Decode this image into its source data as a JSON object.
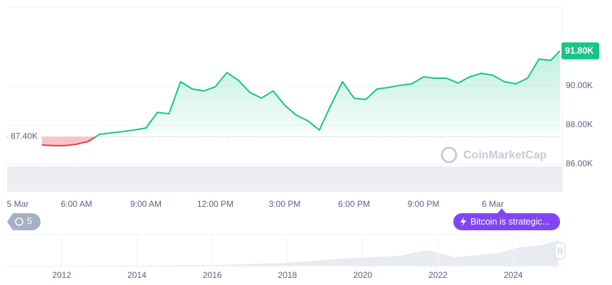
{
  "chart_data": {
    "type": "line",
    "x": [
      4.5,
      5,
      5.5,
      6,
      6.5,
      7,
      7.5,
      8,
      8.5,
      9,
      9.5,
      10,
      10.5,
      11,
      11.5,
      12,
      12.5,
      13,
      13.5,
      14,
      14.5,
      15,
      15.5,
      16,
      16.5,
      17,
      17.5,
      18,
      18.5,
      19,
      19.5,
      20,
      20.5,
      21,
      21.5,
      22,
      22.5,
      23,
      23.5,
      24,
      24.5,
      25,
      25.5,
      26,
      26.5,
      26.9
    ],
    "values": [
      86980,
      86950,
      86950,
      87020,
      87160,
      87530,
      87600,
      87670,
      87750,
      87850,
      88650,
      88580,
      90220,
      89850,
      89750,
      89960,
      90690,
      90290,
      89670,
      89380,
      89750,
      89020,
      88510,
      88220,
      87750,
      89020,
      90220,
      89380,
      89310,
      89850,
      89930,
      90040,
      90110,
      90470,
      90400,
      90400,
      90150,
      90470,
      90650,
      90550,
      90220,
      90110,
      90400,
      91380,
      91310,
      91800
    ],
    "up_color": "#16c784",
    "down_color": "#ea3943",
    "reference": {
      "value": 87400,
      "label": "87.40K"
    },
    "last_price": {
      "value": 91800,
      "label": "91.80K"
    },
    "xlim": [
      3,
      27
    ],
    "xticks": [
      {
        "value": 3,
        "label": "5 Mar"
      },
      {
        "value": 6,
        "label": "6:00 AM"
      },
      {
        "value": 9,
        "label": "9:00 AM"
      },
      {
        "value": 12,
        "label": "12:00 PM"
      },
      {
        "value": 15,
        "label": "3:00 PM"
      },
      {
        "value": 18,
        "label": "6:00 PM"
      },
      {
        "value": 21,
        "label": "9:00 PM"
      },
      {
        "value": 24,
        "label": "6 Mar"
      }
    ],
    "ylim": [
      84580,
      94040
    ],
    "yticks": [
      {
        "value": 86000,
        "label": "86.00K"
      },
      {
        "value": 88000,
        "label": "88.00K"
      },
      {
        "value": 90000,
        "label": "90.00K"
      }
    ],
    "grid": true
  },
  "navigator": {
    "xlim": [
      2010.55,
      2025.3
    ],
    "xticks": [
      2012,
      2014,
      2016,
      2018,
      2020,
      2022,
      2024
    ]
  },
  "badges": {
    "history_count": 5,
    "news": "Bitcoin is strategic...",
    "watermark": "CoinMarketCap"
  }
}
